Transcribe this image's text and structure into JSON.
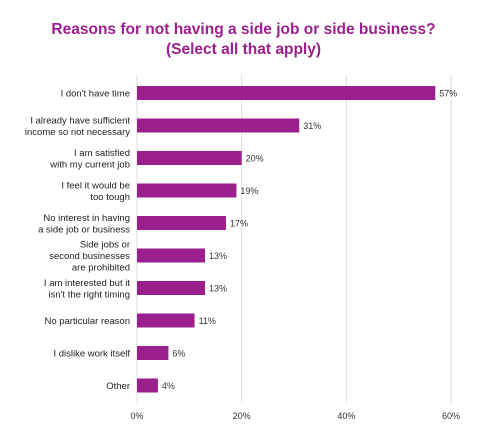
{
  "chart_data": {
    "type": "bar",
    "orientation": "horizontal",
    "title": "Reasons for not having a side job or side business?",
    "subtitle": "(Select all that apply)",
    "categories": [
      "I don't have time",
      "I already have sufficient income so not necessary",
      "I am satisfied with my current job",
      "I feel it would be too tough",
      "No interest in having a side job or business",
      "Side jobs or second businesses are prohibited",
      "I am interested but it isn't the right timing",
      "No particular reason",
      "I dislike work itself",
      "Other"
    ],
    "category_label_lines": [
      [
        "I don't have time"
      ],
      [
        "I already have sufficient",
        "income so not necessary"
      ],
      [
        "I am satisfied",
        "with my current job"
      ],
      [
        "I feel it would be",
        "too tough"
      ],
      [
        "No interest in having",
        "a side job or business"
      ],
      [
        "Side jobs or",
        "second businesses",
        "are prohibited"
      ],
      [
        "I am interested but it",
        "isn't the right timing"
      ],
      [
        "No particular reason"
      ],
      [
        "I dislike work itself"
      ],
      [
        "Other"
      ]
    ],
    "values": [
      57,
      31,
      20,
      19,
      17,
      13,
      13,
      11,
      6,
      4
    ],
    "value_labels": [
      "57%",
      "31%",
      "20%",
      "19%",
      "17%",
      "13%",
      "13%",
      "11%",
      "6%",
      "4%"
    ],
    "xlim": [
      0,
      60
    ],
    "xticks": [
      0,
      20,
      40,
      60
    ],
    "xtick_labels": [
      "0%",
      "20%",
      "40%",
      "60%"
    ],
    "xlabel": "",
    "ylabel": "",
    "grid": "vertical",
    "legend": "none",
    "bar_color": "#9b1f8c",
    "grid_color": "#dddddd"
  }
}
